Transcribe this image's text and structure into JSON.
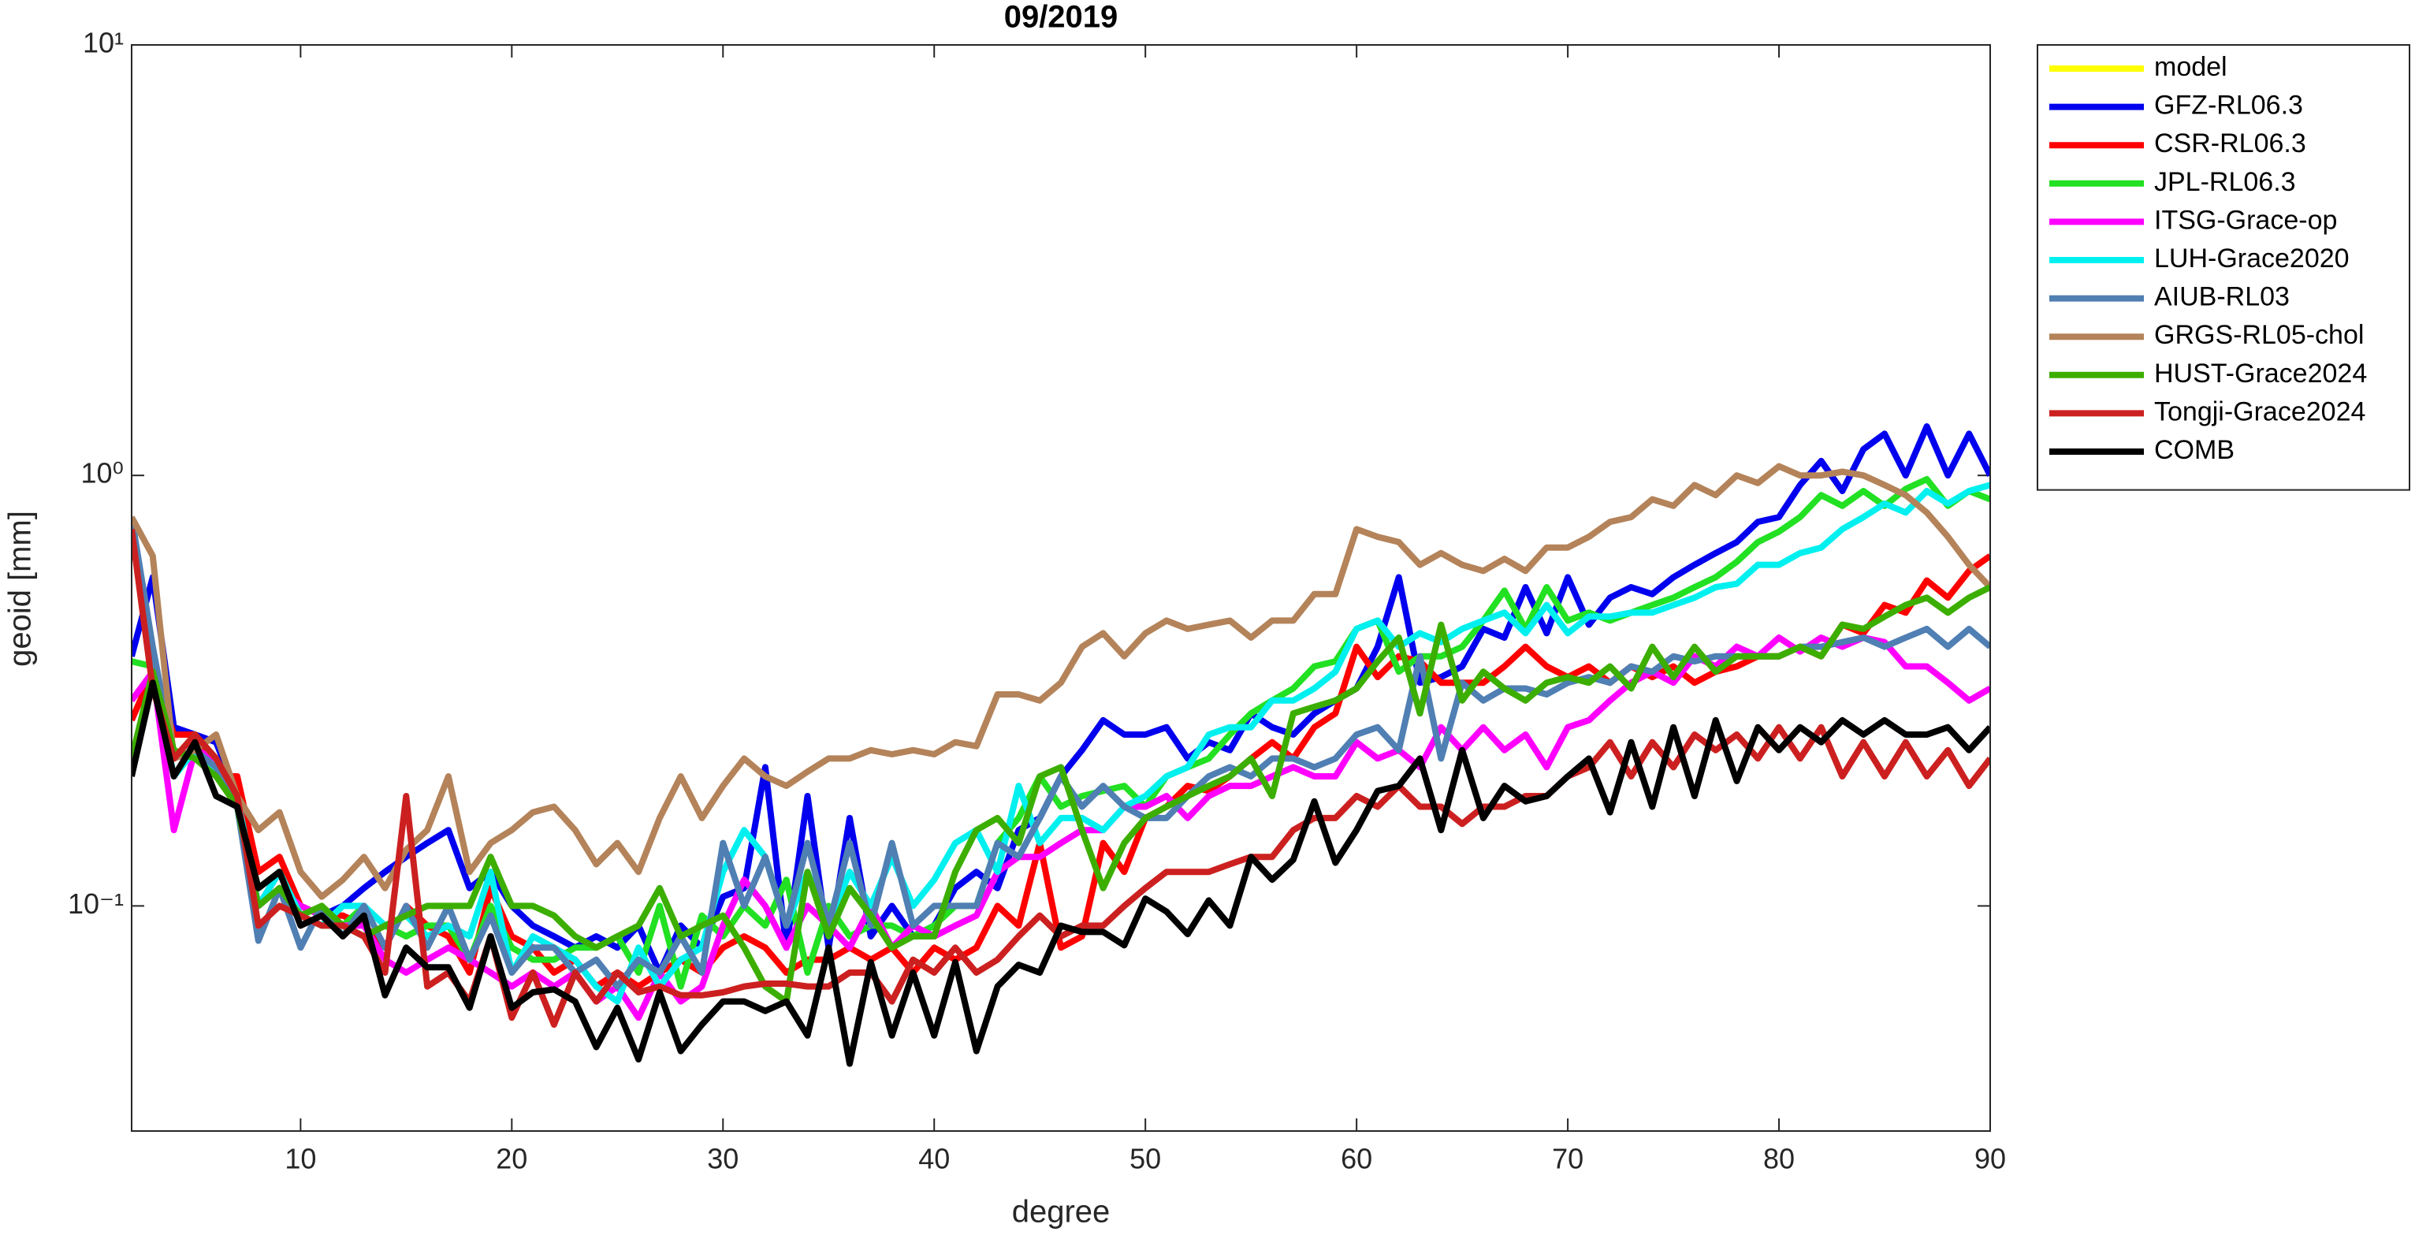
{
  "chart_data": {
    "type": "line",
    "title": "09/2019",
    "xlabel": "degree",
    "ylabel": "geoid [mm]",
    "yscale": "log",
    "legend": "outside-right",
    "xlim": [
      2,
      90
    ],
    "xticks": [
      10,
      20,
      30,
      40,
      50,
      60,
      70,
      80,
      90
    ],
    "ylim": [
      0.03,
      10
    ],
    "yticks": [
      {
        "value": 0.1,
        "label": "10⁻¹"
      },
      {
        "value": 1,
        "label": "10⁰"
      },
      {
        "value": 10,
        "label": "10¹"
      }
    ],
    "x": [
      2,
      3,
      4,
      5,
      6,
      7,
      8,
      9,
      10,
      11,
      12,
      13,
      14,
      15,
      16,
      17,
      18,
      19,
      20,
      21,
      22,
      23,
      24,
      25,
      26,
      27,
      28,
      29,
      30,
      31,
      32,
      33,
      34,
      35,
      36,
      37,
      38,
      39,
      40,
      41,
      42,
      43,
      44,
      45,
      46,
      47,
      48,
      49,
      50,
      51,
      52,
      53,
      54,
      55,
      56,
      57,
      58,
      59,
      60,
      61,
      62,
      63,
      64,
      65,
      66,
      67,
      68,
      69,
      70,
      71,
      72,
      73,
      74,
      75,
      76,
      77,
      78,
      79,
      80,
      81,
      82,
      83,
      84,
      85,
      86,
      87,
      88,
      89,
      90
    ],
    "series": [
      {
        "name": "model",
        "color": "#ffff00",
        "values": [
          null,
          null,
          null,
          null,
          null,
          null,
          null,
          null,
          null,
          null,
          null,
          null,
          null,
          null,
          null,
          null,
          null,
          null,
          null,
          null,
          null,
          null,
          null,
          null,
          null,
          null,
          null,
          null,
          null,
          null,
          null,
          null,
          null,
          null,
          null,
          null,
          null,
          null,
          null,
          null,
          null,
          null,
          null,
          null,
          null,
          null,
          null,
          null,
          null,
          null,
          null,
          null,
          null,
          null,
          null,
          null,
          null,
          null,
          null,
          null,
          null,
          null,
          null,
          null,
          null,
          null,
          null,
          null,
          null,
          null,
          null,
          null,
          null,
          null,
          null,
          null,
          null,
          null,
          null,
          null,
          null,
          null,
          null,
          null,
          null,
          null,
          null,
          null,
          null
        ]
      },
      {
        "name": "GFZ-RL06.3",
        "color": "#0000ee",
        "values": [
          0.38,
          0.58,
          0.26,
          0.25,
          0.24,
          0.18,
          0.1,
          0.12,
          0.1,
          0.095,
          0.1,
          0.11,
          0.12,
          0.13,
          0.14,
          0.15,
          0.11,
          0.12,
          0.1,
          0.09,
          0.085,
          0.08,
          0.085,
          0.08,
          0.09,
          0.07,
          0.09,
          0.08,
          0.105,
          0.11,
          0.21,
          0.08,
          0.18,
          0.08,
          0.16,
          0.085,
          0.1,
          0.085,
          0.09,
          0.11,
          0.12,
          0.11,
          0.15,
          0.16,
          0.2,
          0.23,
          0.27,
          0.25,
          0.25,
          0.26,
          0.22,
          0.24,
          0.23,
          0.28,
          0.26,
          0.25,
          0.28,
          0.3,
          0.32,
          0.4,
          0.58,
          0.33,
          0.34,
          0.36,
          0.44,
          0.42,
          0.55,
          0.43,
          0.58,
          0.45,
          0.52,
          0.55,
          0.53,
          0.58,
          0.62,
          0.66,
          0.7,
          0.78,
          0.8,
          0.95,
          1.08,
          0.92,
          1.15,
          1.25,
          1.0,
          1.3,
          1.0,
          1.25,
          1.0
        ]
      },
      {
        "name": "CSR-RL06.3",
        "color": "#ff0000",
        "values": [
          0.27,
          0.35,
          0.25,
          0.25,
          0.2,
          0.2,
          0.12,
          0.13,
          0.1,
          0.095,
          0.095,
          0.09,
          0.08,
          0.1,
          0.09,
          0.085,
          0.07,
          0.11,
          0.085,
          0.08,
          0.07,
          0.075,
          0.065,
          0.07,
          0.065,
          0.07,
          0.075,
          0.07,
          0.08,
          0.085,
          0.08,
          0.07,
          0.075,
          0.075,
          0.08,
          0.075,
          0.08,
          0.07,
          0.08,
          0.075,
          0.08,
          0.1,
          0.09,
          0.14,
          0.08,
          0.085,
          0.14,
          0.12,
          0.16,
          0.17,
          0.19,
          0.185,
          0.2,
          0.22,
          0.24,
          0.22,
          0.26,
          0.28,
          0.4,
          0.34,
          0.38,
          0.37,
          0.33,
          0.33,
          0.33,
          0.36,
          0.4,
          0.36,
          0.34,
          0.36,
          0.33,
          0.36,
          0.34,
          0.36,
          0.33,
          0.35,
          0.36,
          0.38,
          0.38,
          0.4,
          0.38,
          0.45,
          0.43,
          0.5,
          0.48,
          0.57,
          0.52,
          0.6,
          0.65
        ]
      },
      {
        "name": "JPL-RL06.3",
        "color": "#22e022",
        "values": [
          0.37,
          0.36,
          0.22,
          0.25,
          0.22,
          0.17,
          0.11,
          0.12,
          0.095,
          0.09,
          0.09,
          0.1,
          0.09,
          0.085,
          0.09,
          0.09,
          0.075,
          0.1,
          0.08,
          0.075,
          0.075,
          0.08,
          0.08,
          0.085,
          0.07,
          0.1,
          0.065,
          0.095,
          0.085,
          0.1,
          0.09,
          0.115,
          0.07,
          0.1,
          0.085,
          0.09,
          0.09,
          0.085,
          0.09,
          0.1,
          0.1,
          0.14,
          0.16,
          0.2,
          0.17,
          0.18,
          0.185,
          0.19,
          0.17,
          0.2,
          0.21,
          0.22,
          0.25,
          0.28,
          0.3,
          0.32,
          0.36,
          0.37,
          0.44,
          0.46,
          0.35,
          0.38,
          0.38,
          0.4,
          0.46,
          0.54,
          0.44,
          0.55,
          0.46,
          0.48,
          0.46,
          0.48,
          0.5,
          0.52,
          0.55,
          0.58,
          0.63,
          0.7,
          0.74,
          0.8,
          0.9,
          0.85,
          0.92,
          0.85,
          0.93,
          0.98,
          0.85,
          0.92,
          0.88
        ]
      },
      {
        "name": "ITSG-Grace-op",
        "color": "#ff00ff",
        "values": [
          0.3,
          0.35,
          0.15,
          0.23,
          0.22,
          0.17,
          0.1,
          0.11,
          0.1,
          0.095,
          0.09,
          0.09,
          0.075,
          0.07,
          0.075,
          0.08,
          0.075,
          0.07,
          0.065,
          0.07,
          0.065,
          0.07,
          0.06,
          0.065,
          0.055,
          0.07,
          0.06,
          0.065,
          0.09,
          0.115,
          0.1,
          0.08,
          0.1,
          0.09,
          0.08,
          0.1,
          0.08,
          0.09,
          0.085,
          0.09,
          0.095,
          0.12,
          0.13,
          0.13,
          0.14,
          0.15,
          0.15,
          0.17,
          0.17,
          0.18,
          0.16,
          0.18,
          0.19,
          0.19,
          0.2,
          0.21,
          0.2,
          0.2,
          0.24,
          0.22,
          0.23,
          0.21,
          0.26,
          0.23,
          0.26,
          0.23,
          0.25,
          0.21,
          0.26,
          0.27,
          0.3,
          0.33,
          0.35,
          0.33,
          0.38,
          0.36,
          0.4,
          0.38,
          0.42,
          0.39,
          0.42,
          0.4,
          0.42,
          0.41,
          0.36,
          0.36,
          0.33,
          0.3,
          0.32
        ]
      },
      {
        "name": "LUH-Grace2020",
        "color": "#00f0f0",
        "values": [
          0.75,
          0.35,
          0.2,
          0.23,
          0.2,
          0.18,
          0.1,
          0.12,
          0.095,
          0.09,
          0.1,
          0.1,
          0.09,
          0.095,
          0.085,
          0.09,
          0.085,
          0.12,
          0.07,
          0.085,
          0.08,
          0.075,
          0.065,
          0.06,
          0.08,
          0.065,
          0.075,
          0.08,
          0.12,
          0.15,
          0.13,
          0.09,
          0.12,
          0.09,
          0.12,
          0.1,
          0.13,
          0.1,
          0.115,
          0.14,
          0.15,
          0.12,
          0.19,
          0.14,
          0.16,
          0.16,
          0.15,
          0.17,
          0.18,
          0.2,
          0.21,
          0.25,
          0.26,
          0.26,
          0.3,
          0.3,
          0.32,
          0.35,
          0.44,
          0.46,
          0.4,
          0.43,
          0.41,
          0.44,
          0.46,
          0.48,
          0.43,
          0.5,
          0.43,
          0.47,
          0.47,
          0.48,
          0.48,
          0.5,
          0.52,
          0.55,
          0.56,
          0.62,
          0.62,
          0.66,
          0.68,
          0.75,
          0.8,
          0.86,
          0.82,
          0.92,
          0.86,
          0.92,
          0.95
        ]
      },
      {
        "name": "AIUB-RL03",
        "color": "#4f7fb3",
        "values": [
          0.8,
          0.4,
          0.22,
          0.23,
          0.21,
          0.17,
          0.083,
          0.11,
          0.08,
          0.1,
          0.085,
          0.1,
          0.08,
          0.1,
          0.08,
          0.1,
          0.075,
          0.095,
          0.07,
          0.08,
          0.08,
          0.07,
          0.075,
          0.065,
          0.075,
          0.07,
          0.085,
          0.07,
          0.14,
          0.1,
          0.13,
          0.09,
          0.14,
          0.09,
          0.14,
          0.09,
          0.14,
          0.09,
          0.1,
          0.1,
          0.1,
          0.14,
          0.13,
          0.16,
          0.2,
          0.17,
          0.19,
          0.17,
          0.16,
          0.16,
          0.18,
          0.2,
          0.21,
          0.2,
          0.22,
          0.22,
          0.21,
          0.22,
          0.25,
          0.26,
          0.23,
          0.38,
          0.22,
          0.33,
          0.3,
          0.32,
          0.32,
          0.31,
          0.33,
          0.34,
          0.33,
          0.36,
          0.35,
          0.38,
          0.37,
          0.38,
          0.38,
          0.38,
          0.38,
          0.4,
          0.4,
          0.41,
          0.42,
          0.4,
          0.42,
          0.44,
          0.4,
          0.44,
          0.4
        ]
      },
      {
        "name": "GRGS-RL05-chol",
        "color": "#b4835a",
        "values": [
          0.8,
          0.65,
          0.22,
          0.23,
          0.25,
          0.18,
          0.15,
          0.165,
          0.12,
          0.105,
          0.115,
          0.13,
          0.11,
          0.135,
          0.15,
          0.2,
          0.12,
          0.14,
          0.15,
          0.165,
          0.17,
          0.15,
          0.125,
          0.14,
          0.12,
          0.16,
          0.2,
          0.16,
          0.19,
          0.22,
          0.2,
          0.19,
          0.205,
          0.22,
          0.22,
          0.23,
          0.225,
          0.23,
          0.225,
          0.24,
          0.235,
          0.31,
          0.31,
          0.3,
          0.33,
          0.4,
          0.43,
          0.38,
          0.43,
          0.46,
          0.44,
          0.45,
          0.46,
          0.42,
          0.46,
          0.46,
          0.53,
          0.53,
          0.75,
          0.72,
          0.7,
          0.62,
          0.66,
          0.62,
          0.6,
          0.64,
          0.6,
          0.68,
          0.68,
          0.72,
          0.78,
          0.8,
          0.88,
          0.85,
          0.95,
          0.9,
          1.0,
          0.96,
          1.05,
          1.0,
          1.0,
          1.02,
          1.0,
          0.95,
          0.9,
          0.82,
          0.72,
          0.62,
          0.55
        ]
      },
      {
        "name": "HUST-Grace2024",
        "color": "#3cae00",
        "values": [
          0.22,
          0.35,
          0.23,
          0.22,
          0.2,
          0.17,
          0.1,
          0.11,
          0.095,
          0.1,
          0.09,
          0.085,
          0.09,
          0.095,
          0.1,
          0.1,
          0.1,
          0.13,
          0.1,
          0.1,
          0.095,
          0.085,
          0.08,
          0.085,
          0.09,
          0.11,
          0.085,
          0.09,
          0.095,
          0.08,
          0.065,
          0.06,
          0.12,
          0.085,
          0.11,
          0.095,
          0.08,
          0.085,
          0.085,
          0.12,
          0.15,
          0.16,
          0.14,
          0.2,
          0.21,
          0.15,
          0.11,
          0.14,
          0.16,
          0.17,
          0.18,
          0.19,
          0.2,
          0.22,
          0.18,
          0.28,
          0.29,
          0.3,
          0.32,
          0.37,
          0.42,
          0.28,
          0.45,
          0.3,
          0.35,
          0.32,
          0.3,
          0.33,
          0.34,
          0.33,
          0.36,
          0.32,
          0.4,
          0.34,
          0.4,
          0.35,
          0.38,
          0.38,
          0.38,
          0.4,
          0.38,
          0.45,
          0.44,
          0.47,
          0.5,
          0.52,
          0.48,
          0.52,
          0.55
        ]
      },
      {
        "name": "Tongji-Grace2024",
        "color": "#cc2020",
        "values": [
          0.75,
          0.32,
          0.22,
          0.25,
          0.22,
          0.18,
          0.09,
          0.1,
          0.095,
          0.09,
          0.09,
          0.085,
          0.07,
          0.18,
          0.065,
          0.07,
          0.06,
          0.085,
          0.055,
          0.07,
          0.053,
          0.07,
          0.06,
          0.07,
          0.063,
          0.065,
          0.062,
          0.062,
          0.063,
          0.065,
          0.066,
          0.066,
          0.065,
          0.065,
          0.07,
          0.07,
          0.06,
          0.075,
          0.07,
          0.08,
          0.07,
          0.075,
          0.085,
          0.095,
          0.085,
          0.09,
          0.09,
          0.1,
          0.11,
          0.12,
          0.12,
          0.12,
          0.125,
          0.13,
          0.13,
          0.15,
          0.16,
          0.16,
          0.18,
          0.17,
          0.19,
          0.17,
          0.17,
          0.155,
          0.17,
          0.17,
          0.18,
          0.18,
          0.2,
          0.21,
          0.24,
          0.2,
          0.24,
          0.21,
          0.25,
          0.23,
          0.25,
          0.22,
          0.26,
          0.22,
          0.26,
          0.2,
          0.24,
          0.2,
          0.24,
          0.2,
          0.23,
          0.19,
          0.22
        ]
      },
      {
        "name": "COMB",
        "color": "#000000",
        "values": [
          0.2,
          0.33,
          0.2,
          0.24,
          0.18,
          0.17,
          0.11,
          0.12,
          0.09,
          0.095,
          0.085,
          0.095,
          0.062,
          0.08,
          0.072,
          0.072,
          0.058,
          0.085,
          0.058,
          0.063,
          0.064,
          0.06,
          0.047,
          0.058,
          0.044,
          0.063,
          0.046,
          0.053,
          0.06,
          0.06,
          0.057,
          0.06,
          0.05,
          0.08,
          0.043,
          0.074,
          0.05,
          0.07,
          0.05,
          0.074,
          0.046,
          0.065,
          0.073,
          0.07,
          0.09,
          0.087,
          0.087,
          0.081,
          0.104,
          0.097,
          0.086,
          0.103,
          0.09,
          0.13,
          0.115,
          0.128,
          0.175,
          0.126,
          0.15,
          0.185,
          0.19,
          0.22,
          0.15,
          0.23,
          0.16,
          0.19,
          0.175,
          0.18,
          0.2,
          0.22,
          0.165,
          0.24,
          0.17,
          0.26,
          0.18,
          0.27,
          0.195,
          0.26,
          0.23,
          0.26,
          0.24,
          0.27,
          0.25,
          0.27,
          0.25,
          0.25,
          0.26,
          0.23,
          0.26
        ]
      }
    ]
  }
}
